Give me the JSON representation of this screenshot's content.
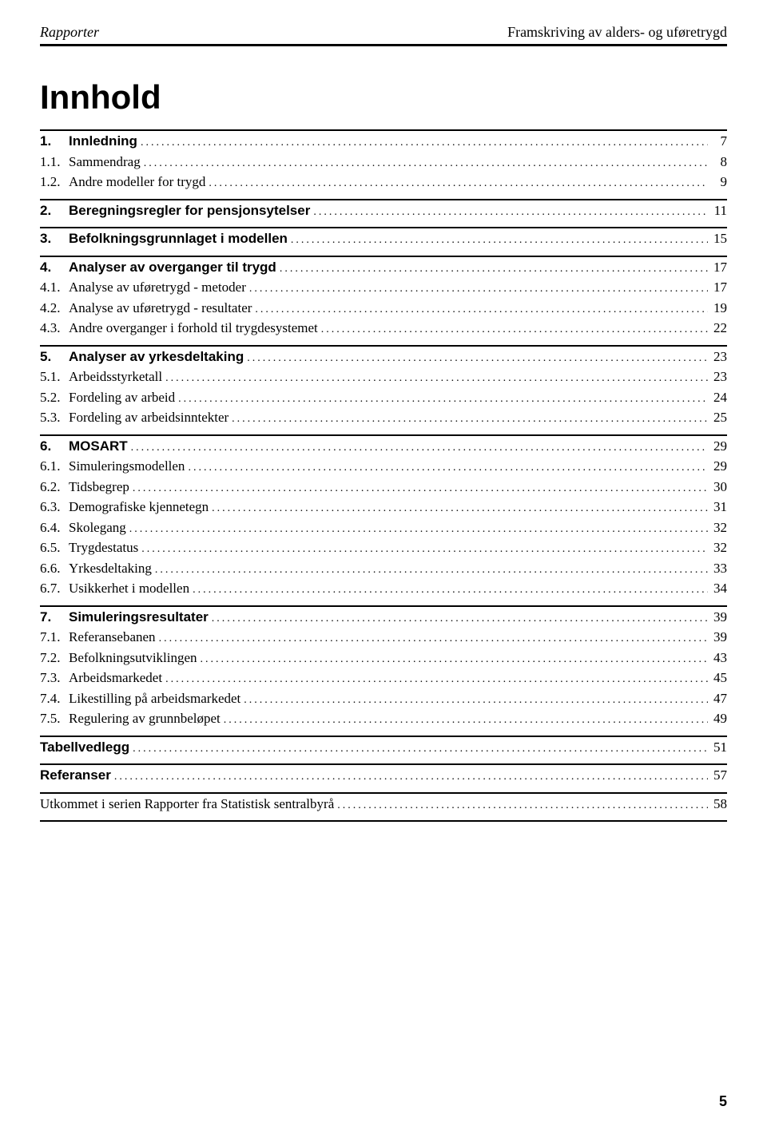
{
  "header": {
    "left": "Rapporter",
    "right": "Framskriving av alders- og uføretrygd"
  },
  "title": "Innhold",
  "sections": [
    {
      "divider": true,
      "items": [
        {
          "num": "1.",
          "label": "Innledning",
          "page": "7",
          "bold": true
        },
        {
          "num": "1.1.",
          "label": "Sammendrag",
          "page": "8",
          "bold": false
        },
        {
          "num": "1.2.",
          "label": "Andre modeller for trygd",
          "page": "9",
          "bold": false
        }
      ]
    },
    {
      "divider": true,
      "items": [
        {
          "num": "2.",
          "label": "Beregningsregler for pensjonsytelser",
          "page": "11",
          "bold": true
        }
      ]
    },
    {
      "divider": true,
      "items": [
        {
          "num": "3.",
          "label": "Befolkningsgrunnlaget i modellen",
          "page": "15",
          "bold": true
        }
      ]
    },
    {
      "divider": true,
      "items": [
        {
          "num": "4.",
          "label": "Analyser av overganger til trygd",
          "page": "17",
          "bold": true
        },
        {
          "num": "4.1.",
          "label": "Analyse av uføretrygd - metoder",
          "page": "17",
          "bold": false
        },
        {
          "num": "4.2.",
          "label": "Analyse av uføretrygd - resultater",
          "page": "19",
          "bold": false
        },
        {
          "num": "4.3.",
          "label": "Andre overganger i forhold til trygdesystemet",
          "page": "22",
          "bold": false
        }
      ]
    },
    {
      "divider": true,
      "items": [
        {
          "num": "5.",
          "label": "Analyser av yrkesdeltaking",
          "page": "23",
          "bold": true
        },
        {
          "num": "5.1.",
          "label": "Arbeidsstyrketall",
          "page": "23",
          "bold": false
        },
        {
          "num": "5.2.",
          "label": "Fordeling av arbeid",
          "page": "24",
          "bold": false
        },
        {
          "num": "5.3.",
          "label": "Fordeling av arbeidsinntekter",
          "page": "25",
          "bold": false
        }
      ]
    },
    {
      "divider": true,
      "items": [
        {
          "num": "6.",
          "label": "MOSART",
          "page": "29",
          "bold": true
        },
        {
          "num": "6.1.",
          "label": "Simuleringsmodellen",
          "page": "29",
          "bold": false
        },
        {
          "num": "6.2.",
          "label": "Tidsbegrep",
          "page": "30",
          "bold": false
        },
        {
          "num": "6.3.",
          "label": "Demografiske kjennetegn",
          "page": "31",
          "bold": false
        },
        {
          "num": "6.4.",
          "label": "Skolegang",
          "page": "32",
          "bold": false
        },
        {
          "num": "6.5.",
          "label": "Trygdestatus",
          "page": "32",
          "bold": false
        },
        {
          "num": "6.6.",
          "label": "Yrkesdeltaking",
          "page": "33",
          "bold": false
        },
        {
          "num": "6.7.",
          "label": "Usikkerhet i modellen",
          "page": "34",
          "bold": false
        }
      ]
    },
    {
      "divider": true,
      "items": [
        {
          "num": "7.",
          "label": "Simuleringsresultater",
          "page": "39",
          "bold": true
        },
        {
          "num": "7.1.",
          "label": "Referansebanen",
          "page": "39",
          "bold": false
        },
        {
          "num": "7.2.",
          "label": "Befolkningsutviklingen",
          "page": "43",
          "bold": false
        },
        {
          "num": "7.3.",
          "label": "Arbeidsmarkedet",
          "page": "45",
          "bold": false
        },
        {
          "num": "7.4.",
          "label": "Likestilling på arbeidsmarkedet",
          "page": "47",
          "bold": false
        },
        {
          "num": "7.5.",
          "label": "Regulering av grunnbeløpet",
          "page": "49",
          "bold": false
        }
      ]
    },
    {
      "divider": true,
      "items": [
        {
          "num": "",
          "label": "Tabellvedlegg",
          "page": "51",
          "bold": true
        }
      ]
    },
    {
      "divider": true,
      "items": [
        {
          "num": "",
          "label": "Referanser",
          "page": "57",
          "bold": true
        }
      ]
    },
    {
      "divider": true,
      "items": [
        {
          "num": "",
          "label": "Utkommet i serien Rapporter fra Statistisk sentralbyrå",
          "page": "58",
          "bold": false
        }
      ]
    },
    {
      "divider": true,
      "items": []
    }
  ],
  "pageNumber": "5"
}
